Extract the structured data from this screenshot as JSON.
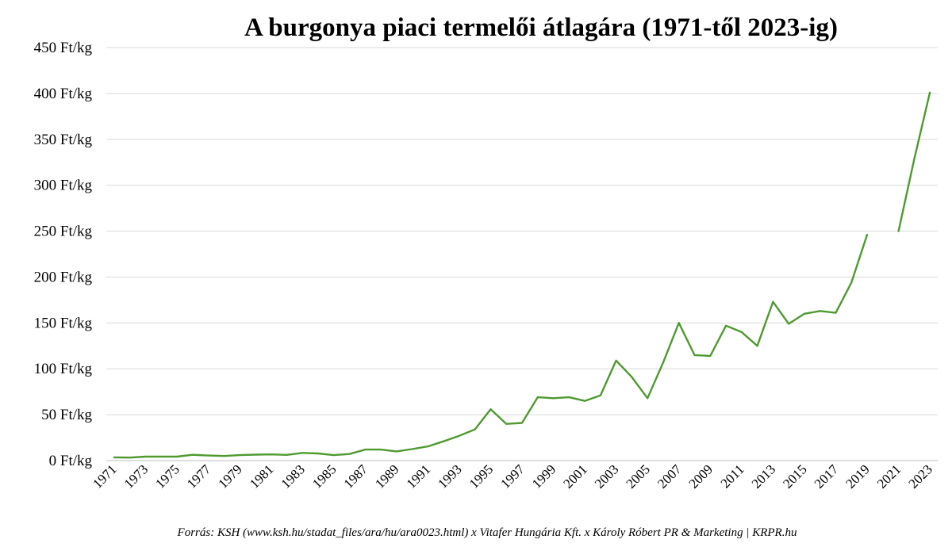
{
  "chart_data": {
    "type": "line",
    "title": "A burgonya piaci termelői átlagára (1971-től 2023-ig)",
    "source": "Forrás: KSH (www.ksh.hu/stadat_files/ara/hu/ara0023.html) x Vitafer Hungária Kft. x Károly Róbert PR & Marketing | KRPR.hu",
    "ylim": [
      0,
      450
    ],
    "y_ticks": [
      0,
      50,
      100,
      150,
      200,
      250,
      300,
      350,
      400,
      450
    ],
    "y_tick_labels": [
      "0 Ft/kg",
      "50 Ft/kg",
      "100 Ft/kg",
      "150 Ft/kg",
      "200 Ft/kg",
      "250 Ft/kg",
      "300 Ft/kg",
      "350 Ft/kg",
      "400 Ft/kg",
      "450 Ft/kg"
    ],
    "x_tick_labels": [
      "1971",
      "1973",
      "1975",
      "1977",
      "1979",
      "1981",
      "1983",
      "1985",
      "1987",
      "1989",
      "1991",
      "1993",
      "1995",
      "1997",
      "1999",
      "2001",
      "2003",
      "2005",
      "2007",
      "2009",
      "2011",
      "2013",
      "2015",
      "2017",
      "2019",
      "2021",
      "2023"
    ],
    "grid": true,
    "legend": "none",
    "color": "#4e9a2f",
    "x": [
      1971,
      1972,
      1973,
      1974,
      1975,
      1976,
      1977,
      1978,
      1979,
      1980,
      1981,
      1982,
      1983,
      1984,
      1985,
      1986,
      1987,
      1988,
      1989,
      1990,
      1991,
      1992,
      1993,
      1994,
      1995,
      1996,
      1997,
      1998,
      1999,
      2000,
      2001,
      2002,
      2003,
      2004,
      2005,
      2006,
      2007,
      2008,
      2009,
      2010,
      2011,
      2012,
      2013,
      2014,
      2015,
      2016,
      2017,
      2018,
      2019,
      2020,
      2021,
      2022,
      2023
    ],
    "series": [
      {
        "values": [
          3.5,
          3.3,
          4.3,
          4.3,
          4.3,
          6.3,
          5.5,
          5,
          6,
          6.5,
          6.7,
          6.2,
          8.4,
          7.8,
          6,
          7.2,
          12,
          12,
          10,
          12.5,
          15.5,
          21,
          27,
          34,
          56,
          40,
          41,
          69,
          68,
          69,
          65,
          71,
          109,
          91,
          68,
          107,
          150,
          115,
          114,
          147,
          140,
          125,
          173,
          149,
          160,
          163,
          161,
          194,
          246,
          null,
          250,
          328,
          401
        ]
      }
    ]
  }
}
